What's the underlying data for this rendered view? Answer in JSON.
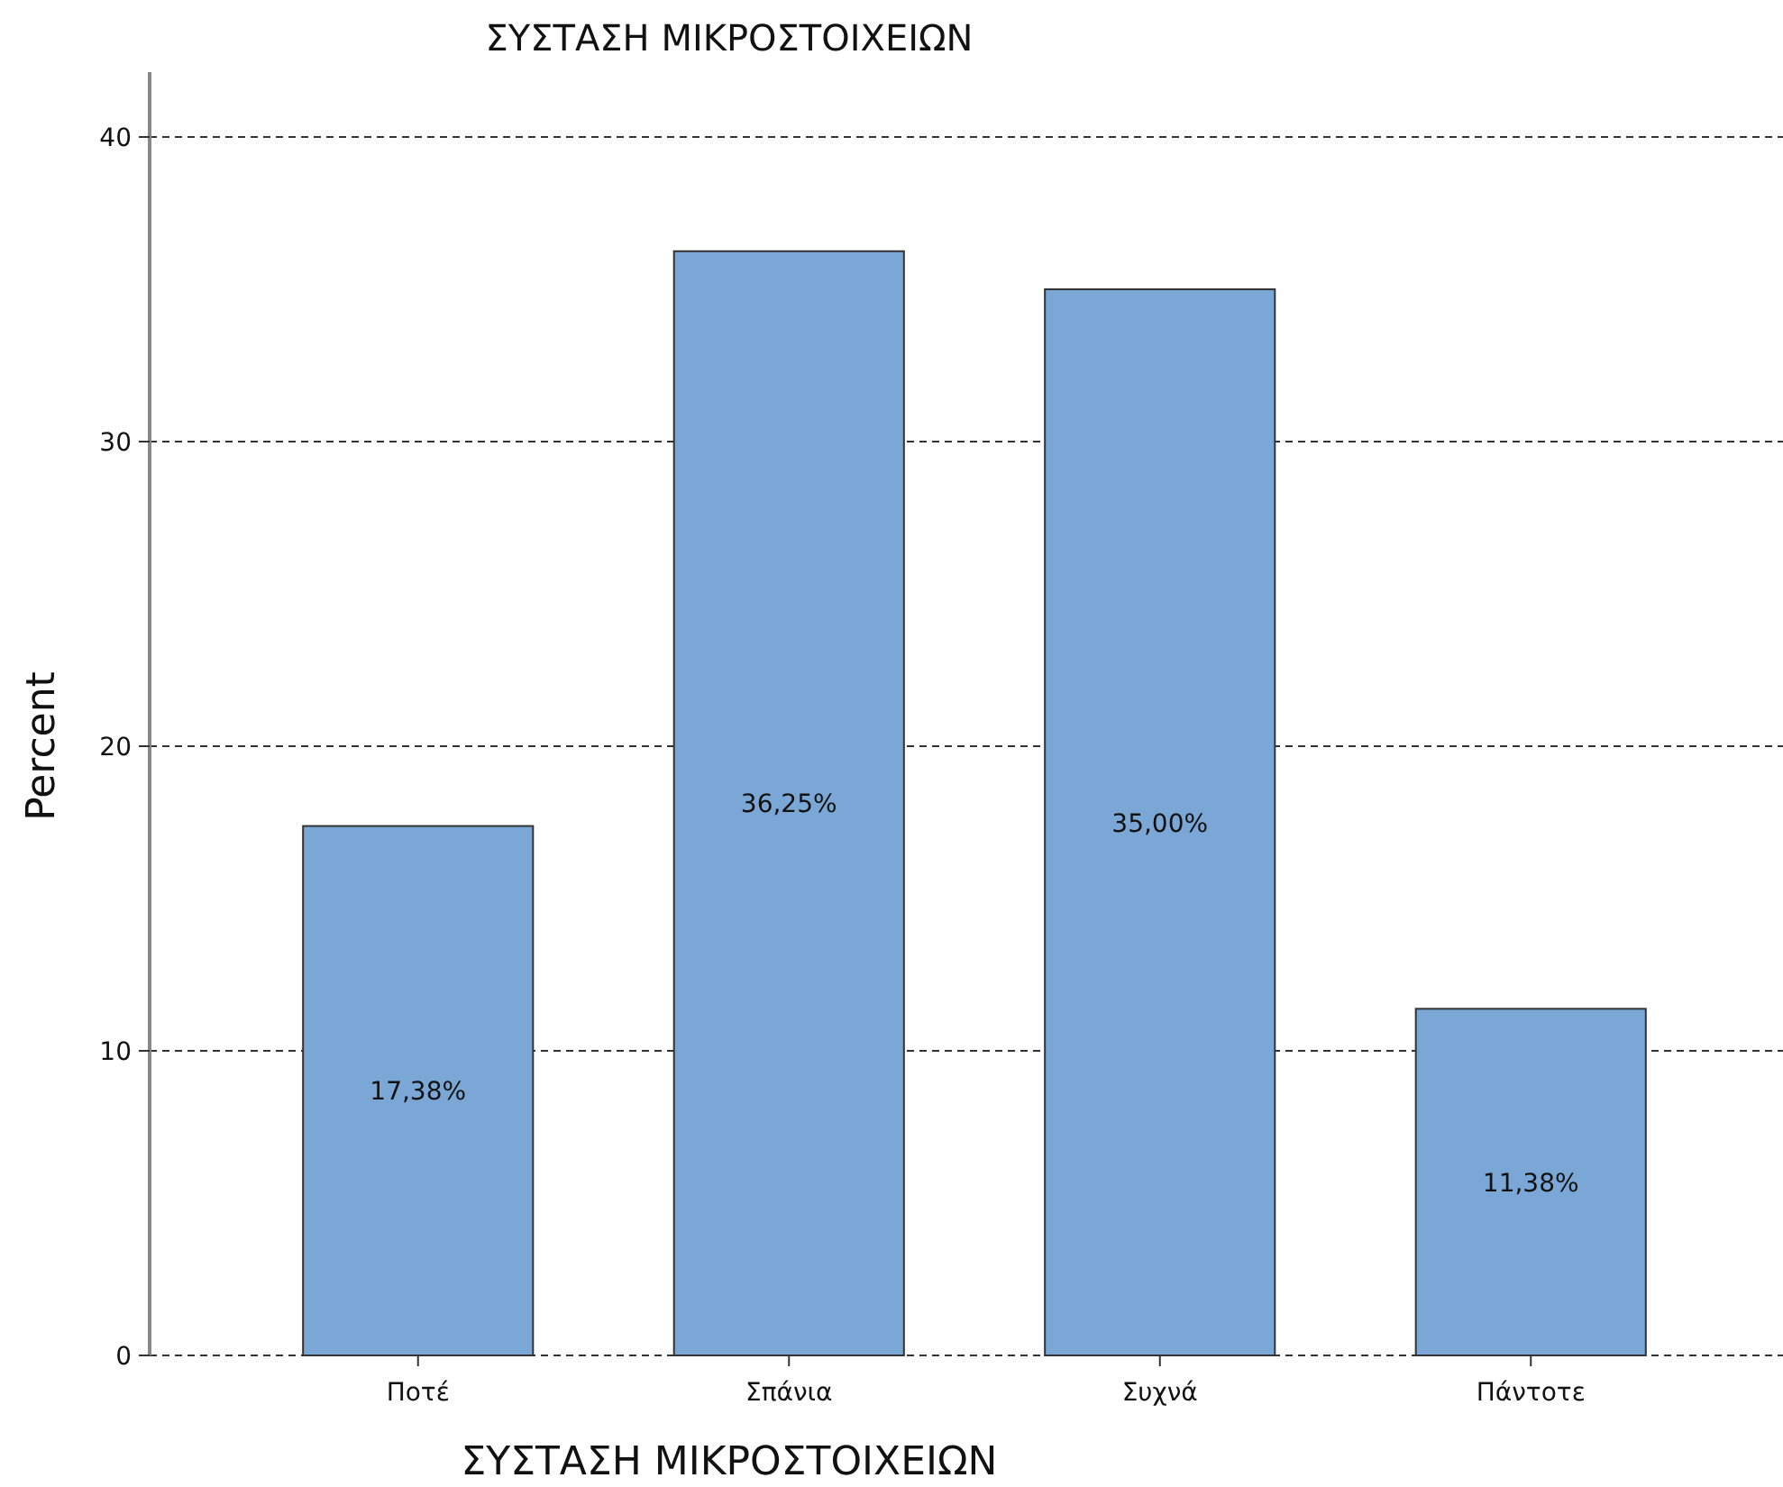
{
  "chart_data": {
    "type": "bar",
    "title": "ΣΥΣΤΑΣΗ ΜΙΚΡΟΣΤΟΙΧΕΙΩΝ",
    "xlabel": "ΣΥΣΤΑΣΗ ΜΙΚΡΟΣΤΟΙΧΕΙΩΝ",
    "ylabel": "Percent",
    "categories": [
      "Ποτέ",
      "Σπάνια",
      "Συχνά",
      "Πάντοτε"
    ],
    "values": [
      17.38,
      36.25,
      35.0,
      11.38
    ],
    "value_labels": [
      "17,38%",
      "36,25%",
      "35,00%",
      "11,38%"
    ],
    "color": "#7aa7d6",
    "ylim": [
      0,
      40
    ],
    "yticks": [
      0,
      10,
      20,
      30,
      40
    ],
    "grid": "y"
  }
}
